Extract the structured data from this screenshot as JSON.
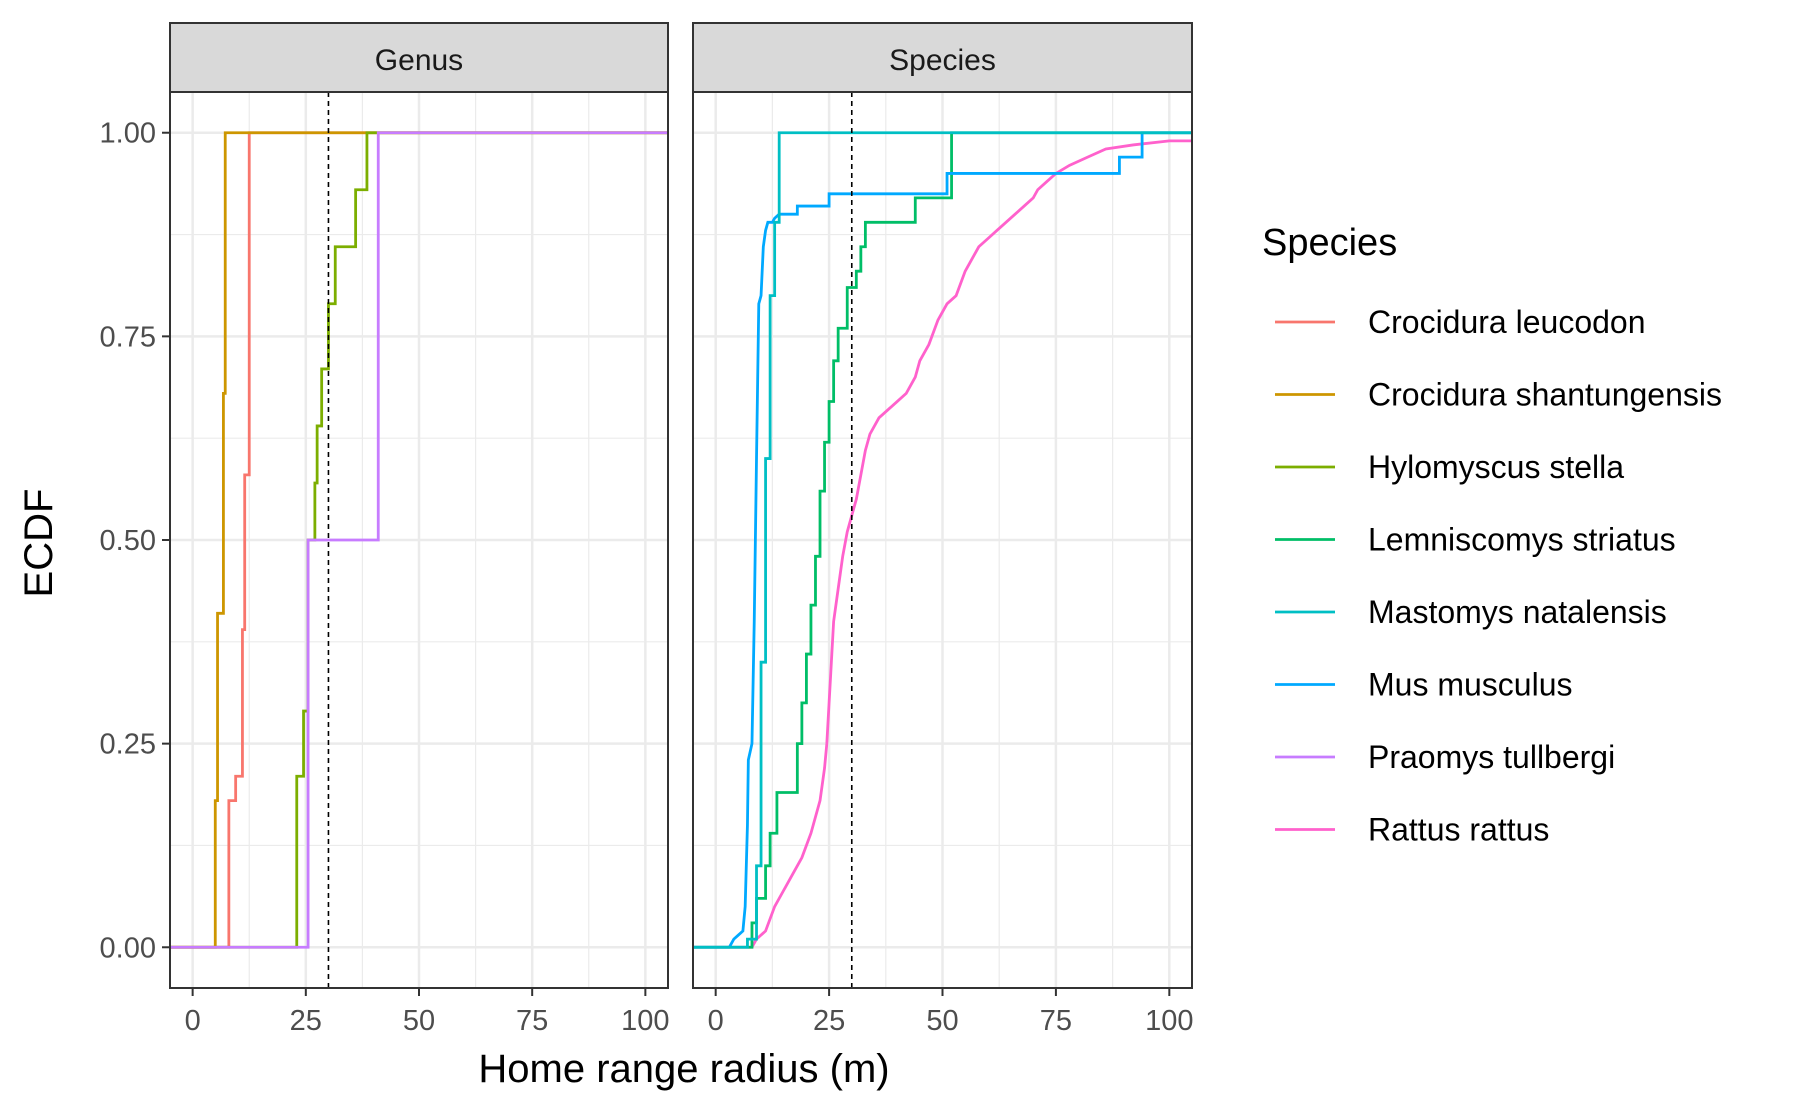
{
  "chart_data": {
    "type": "line",
    "subtype": "ecdf-step",
    "xlabel": "Home range radius (m)",
    "ylabel": "ECDF",
    "xlim": [
      -5,
      105
    ],
    "ylim": [
      -0.05,
      1.05
    ],
    "x_ticks": [
      0,
      25,
      50,
      75,
      100
    ],
    "x_tick_labels": [
      "0",
      "25",
      "50",
      "75",
      "100"
    ],
    "y_ticks": [
      0,
      0.25,
      0.5,
      0.75,
      1.0
    ],
    "y_tick_labels": [
      "0.00",
      "0.25",
      "0.50",
      "0.75",
      "1.00"
    ],
    "grid": true,
    "reference_line": {
      "x": 30,
      "style": "dashed",
      "color": "#000000"
    },
    "legend": {
      "title": "Species",
      "placement": "right",
      "entries": [
        {
          "name": "Crocidura leucodon",
          "color": "#F8766D"
        },
        {
          "name": "Crocidura shantungensis",
          "color": "#CD9600"
        },
        {
          "name": "Hylomyscus stella",
          "color": "#7CAE00"
        },
        {
          "name": "Lemniscomys striatus",
          "color": "#00BE67"
        },
        {
          "name": "Mastomys natalensis",
          "color": "#00BFC4"
        },
        {
          "name": "Mus musculus",
          "color": "#00A9FF"
        },
        {
          "name": "Praomys tullbergi",
          "color": "#C77CFF"
        },
        {
          "name": "Rattus rattus",
          "color": "#FF61CC"
        }
      ]
    },
    "panels": [
      {
        "strip": "Genus",
        "series": [
          {
            "name": "Crocidura leucodon",
            "color": "#F8766D",
            "points": [
              [
                -5,
                0
              ],
              [
                8,
                0
              ],
              [
                8,
                0.18
              ],
              [
                9.5,
                0.18
              ],
              [
                9.5,
                0.21
              ],
              [
                11,
                0.21
              ],
              [
                11,
                0.39
              ],
              [
                11.5,
                0.39
              ],
              [
                11.5,
                0.58
              ],
              [
                12.5,
                0.58
              ],
              [
                12.5,
                1
              ],
              [
                105,
                1
              ]
            ]
          },
          {
            "name": "Crocidura shantungensis",
            "color": "#CD9600",
            "points": [
              [
                -5,
                0
              ],
              [
                5,
                0
              ],
              [
                5,
                0.18
              ],
              [
                5.5,
                0.18
              ],
              [
                5.5,
                0.41
              ],
              [
                6.8,
                0.41
              ],
              [
                6.8,
                0.68
              ],
              [
                7.2,
                0.68
              ],
              [
                7.2,
                1
              ],
              [
                105,
                1
              ]
            ]
          },
          {
            "name": "Hylomyscus stella",
            "color": "#7CAE00",
            "points": [
              [
                -5,
                0
              ],
              [
                23,
                0
              ],
              [
                23,
                0.21
              ],
              [
                24.5,
                0.21
              ],
              [
                24.5,
                0.29
              ],
              [
                25.5,
                0.29
              ],
              [
                25.5,
                0.5
              ],
              [
                27,
                0.5
              ],
              [
                27,
                0.57
              ],
              [
                27.5,
                0.57
              ],
              [
                27.5,
                0.64
              ],
              [
                28.5,
                0.64
              ],
              [
                28.5,
                0.71
              ],
              [
                30,
                0.71
              ],
              [
                30,
                0.79
              ],
              [
                31.5,
                0.79
              ],
              [
                31.5,
                0.86
              ],
              [
                36,
                0.86
              ],
              [
                36,
                0.93
              ],
              [
                38.5,
                0.93
              ],
              [
                38.5,
                1
              ],
              [
                105,
                1
              ]
            ]
          },
          {
            "name": "Praomys tullbergi",
            "color": "#C77CFF",
            "points": [
              [
                -5,
                0
              ],
              [
                25.5,
                0
              ],
              [
                25.5,
                0.5
              ],
              [
                41,
                0.5
              ],
              [
                41,
                1
              ],
              [
                105,
                1
              ]
            ]
          }
        ]
      },
      {
        "strip": "Species",
        "series": [
          {
            "name": "Rattus rattus",
            "color": "#FF61CC",
            "points": [
              [
                -5,
                0
              ],
              [
                8,
                0
              ],
              [
                9,
                0.01
              ],
              [
                11,
                0.02
              ],
              [
                13,
                0.05
              ],
              [
                15,
                0.07
              ],
              [
                17,
                0.09
              ],
              [
                19,
                0.11
              ],
              [
                21,
                0.14
              ],
              [
                23,
                0.18
              ],
              [
                24,
                0.22
              ],
              [
                24.5,
                0.25
              ],
              [
                25,
                0.3
              ],
              [
                25.5,
                0.35
              ],
              [
                26,
                0.4
              ],
              [
                27,
                0.44
              ],
              [
                28,
                0.48
              ],
              [
                29,
                0.51
              ],
              [
                30,
                0.53
              ],
              [
                31,
                0.55
              ],
              [
                32,
                0.58
              ],
              [
                33,
                0.61
              ],
              [
                34,
                0.63
              ],
              [
                36,
                0.65
              ],
              [
                38,
                0.66
              ],
              [
                40,
                0.67
              ],
              [
                42,
                0.68
              ],
              [
                44,
                0.7
              ],
              [
                45,
                0.72
              ],
              [
                47,
                0.74
              ],
              [
                49,
                0.77
              ],
              [
                51,
                0.79
              ],
              [
                53,
                0.8
              ],
              [
                55,
                0.83
              ],
              [
                56,
                0.84
              ],
              [
                58,
                0.86
              ],
              [
                60,
                0.87
              ],
              [
                62,
                0.88
              ],
              [
                64,
                0.89
              ],
              [
                66,
                0.9
              ],
              [
                68,
                0.91
              ],
              [
                70,
                0.92
              ],
              [
                71,
                0.93
              ],
              [
                73,
                0.94
              ],
              [
                75,
                0.95
              ],
              [
                78,
                0.96
              ],
              [
                82,
                0.97
              ],
              [
                86,
                0.98
              ],
              [
                92,
                0.985
              ],
              [
                100,
                0.99
              ],
              [
                105,
                0.99
              ]
            ]
          },
          {
            "name": "Lemniscomys striatus",
            "color": "#00BE67",
            "points": [
              [
                -5,
                0
              ],
              [
                8,
                0
              ],
              [
                8,
                0.03
              ],
              [
                9,
                0.03
              ],
              [
                9,
                0.06
              ],
              [
                11,
                0.06
              ],
              [
                11,
                0.1
              ],
              [
                12,
                0.1
              ],
              [
                12,
                0.14
              ],
              [
                13.5,
                0.14
              ],
              [
                13.5,
                0.19
              ],
              [
                18,
                0.19
              ],
              [
                18,
                0.25
              ],
              [
                19,
                0.25
              ],
              [
                19,
                0.3
              ],
              [
                20,
                0.3
              ],
              [
                20,
                0.36
              ],
              [
                21,
                0.36
              ],
              [
                21,
                0.42
              ],
              [
                22,
                0.42
              ],
              [
                22,
                0.48
              ],
              [
                23,
                0.48
              ],
              [
                23,
                0.56
              ],
              [
                24,
                0.56
              ],
              [
                24,
                0.62
              ],
              [
                25,
                0.62
              ],
              [
                25,
                0.67
              ],
              [
                26,
                0.67
              ],
              [
                26,
                0.72
              ],
              [
                27,
                0.72
              ],
              [
                27,
                0.76
              ],
              [
                29,
                0.76
              ],
              [
                29,
                0.81
              ],
              [
                31,
                0.81
              ],
              [
                31,
                0.83
              ],
              [
                32,
                0.83
              ],
              [
                32,
                0.86
              ],
              [
                33,
                0.86
              ],
              [
                33,
                0.89
              ],
              [
                44,
                0.89
              ],
              [
                44,
                0.92
              ],
              [
                52,
                0.92
              ],
              [
                52,
                1
              ],
              [
                105,
                1
              ]
            ]
          },
          {
            "name": "Mus musculus",
            "color": "#00A9FF",
            "points": [
              [
                -5,
                0
              ],
              [
                3,
                0
              ],
              [
                3.5,
                0.005
              ],
              [
                4,
                0.01
              ],
              [
                5,
                0.015
              ],
              [
                6,
                0.02
              ],
              [
                6.5,
                0.05
              ],
              [
                7,
                0.15
              ],
              [
                7.2,
                0.23
              ],
              [
                8,
                0.25
              ],
              [
                8.5,
                0.4
              ],
              [
                9,
                0.6
              ],
              [
                9.5,
                0.79
              ],
              [
                10,
                0.8
              ],
              [
                10.5,
                0.86
              ],
              [
                11,
                0.88
              ],
              [
                11.5,
                0.89
              ],
              [
                12.5,
                0.89
              ],
              [
                13,
                0.895
              ],
              [
                14,
                0.9
              ],
              [
                18,
                0.9
              ],
              [
                18,
                0.91
              ],
              [
                25,
                0.91
              ],
              [
                25,
                0.925
              ],
              [
                51,
                0.925
              ],
              [
                51,
                0.95
              ],
              [
                89,
                0.95
              ],
              [
                89,
                0.97
              ],
              [
                94,
                0.97
              ],
              [
                94,
                1
              ],
              [
                105,
                1
              ]
            ]
          },
          {
            "name": "Mastomys natalensis",
            "color": "#00BFC4",
            "points": [
              [
                -5,
                0
              ],
              [
                7,
                0
              ],
              [
                7,
                0.01
              ],
              [
                9,
                0.01
              ],
              [
                9,
                0.1
              ],
              [
                10,
                0.1
              ],
              [
                10,
                0.35
              ],
              [
                11,
                0.35
              ],
              [
                11,
                0.6
              ],
              [
                12,
                0.6
              ],
              [
                12,
                0.8
              ],
              [
                13,
                0.8
              ],
              [
                13,
                0.89
              ],
              [
                14,
                0.89
              ],
              [
                14,
                1
              ],
              [
                105,
                1
              ]
            ]
          }
        ]
      }
    ]
  }
}
